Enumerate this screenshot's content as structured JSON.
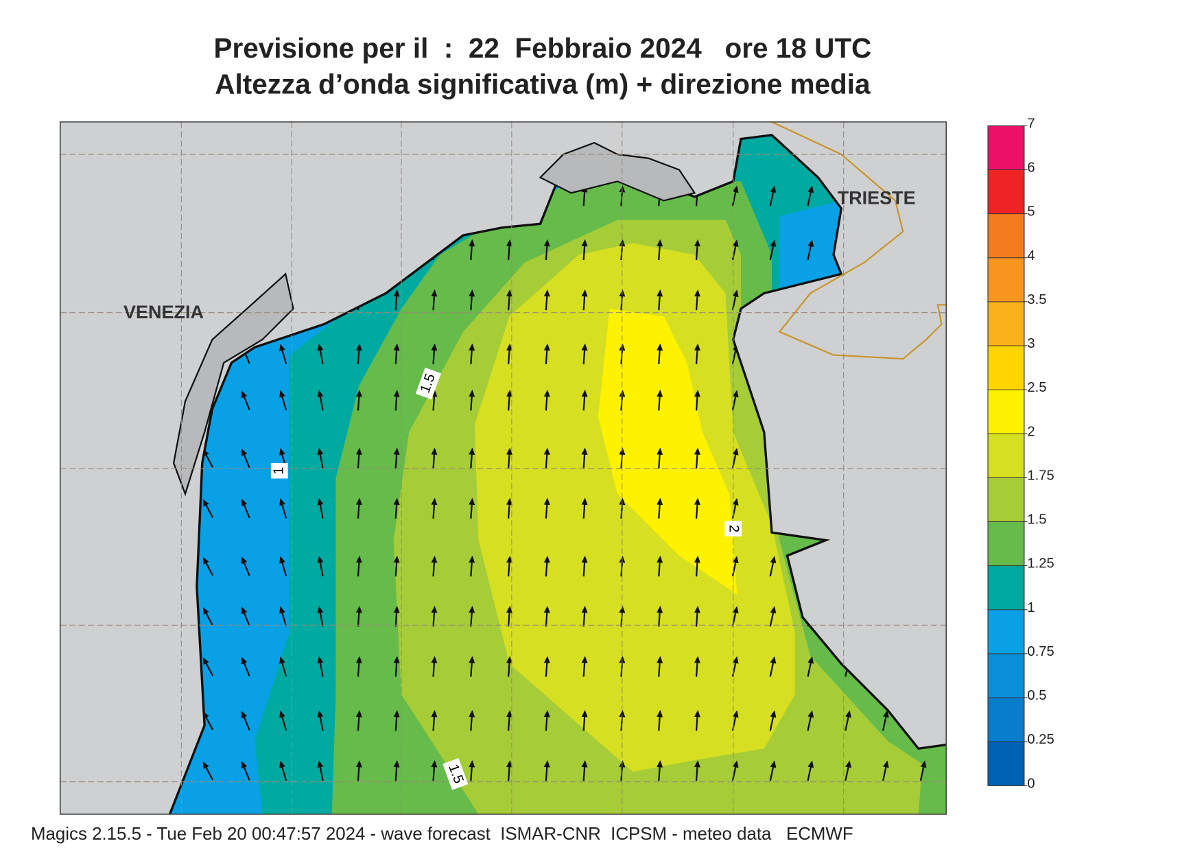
{
  "header": {
    "title": [
      "Previsione per il  :  22  Febbraio 2024   ore 18 UTC",
      "Altezza d’onda significativa (m) + direzione media"
    ]
  },
  "map": {
    "cities": [
      "VENEZIA",
      "TRIESTE"
    ],
    "contour_labels": [
      "1.5",
      "1",
      "2",
      "1.5"
    ]
  },
  "colorbar": {
    "ticks": [
      0,
      0.25,
      0.5,
      0.75,
      1,
      1.25,
      1.5,
      1.75,
      2,
      2.5,
      3,
      3.5,
      4,
      5,
      6,
      7
    ],
    "colors": [
      "#0062b4",
      "#0a7ccc",
      "#0a8ed8",
      "#0aa0e6",
      "#00aaa0",
      "#66bb4a",
      "#a6cc38",
      "#d6df22",
      "#fff200",
      "#ffd500",
      "#fbb21a",
      "#f89420",
      "#f47b20",
      "#ee2424",
      "#ec1068"
    ]
  },
  "footer": "Magics 2.15.5 - Tue Feb 20 00:47:57 2024 - wave forecast  ISMAR-CNR  ICPSM - meteo data   ECMWF"
}
